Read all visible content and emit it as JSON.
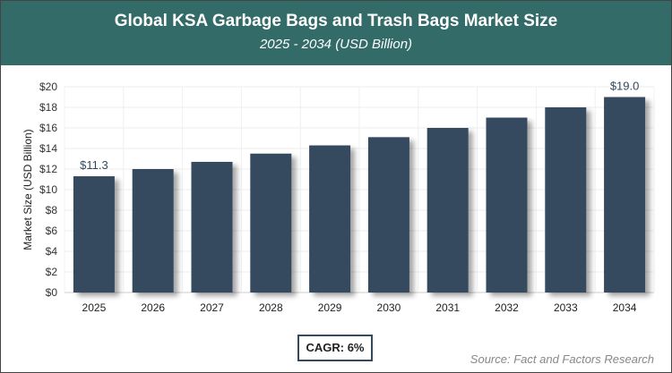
{
  "chart_data": {
    "type": "bar",
    "title": "Global KSA Garbage Bags and Trash Bags Market Size",
    "subtitle": "2025 - 2034 (USD Billion)",
    "ylabel": "Market Size (USD Billion)",
    "xlabel": "",
    "categories": [
      "2025",
      "2026",
      "2027",
      "2028",
      "2029",
      "2030",
      "2031",
      "2032",
      "2033",
      "2034"
    ],
    "values": [
      11.3,
      12.0,
      12.7,
      13.5,
      14.3,
      15.1,
      16.0,
      17.0,
      18.0,
      19.0
    ],
    "data_labels": {
      "0": "$11.3",
      "9": "$19.0"
    },
    "ylim": [
      0,
      20
    ],
    "yticks": [
      "$0",
      "$2",
      "$4",
      "$6",
      "$8",
      "$10",
      "$12",
      "$14",
      "$16",
      "$18",
      "$20"
    ],
    "grid": true,
    "bar_color": "#34495e",
    "header_color": "#336b68"
  },
  "cagr": "CAGR: 6%",
  "source": "Source: Fact and Factors Research"
}
